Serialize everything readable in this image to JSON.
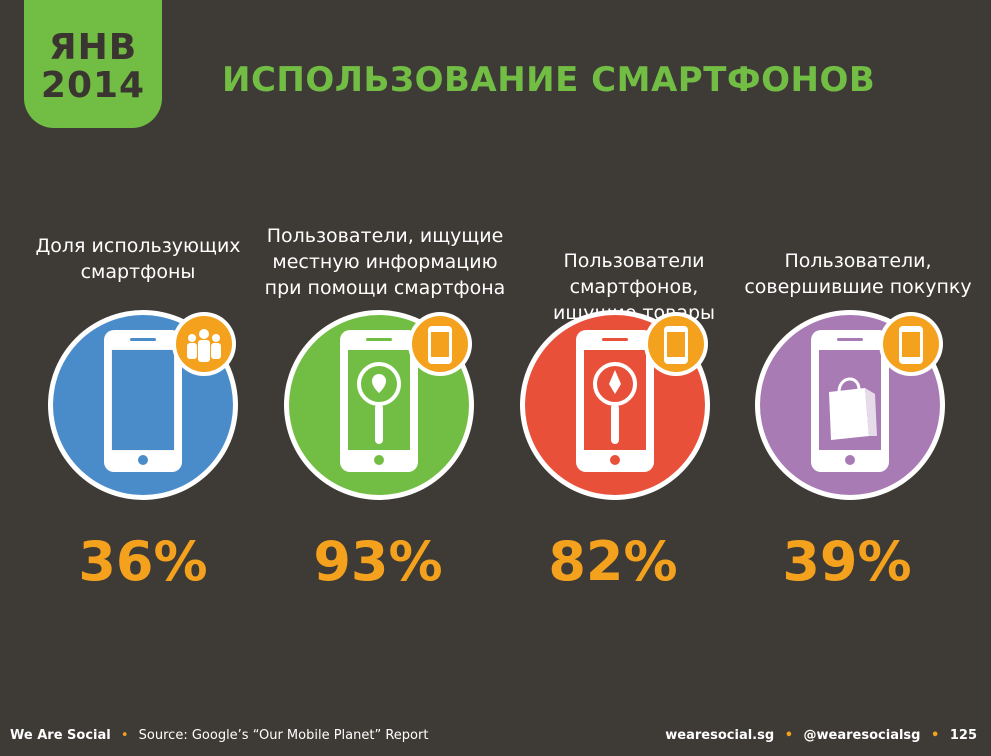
{
  "badge": {
    "month": "ЯНВ",
    "year": "2014"
  },
  "title": "ИСПОЛЬЗОВАНИЕ СМАРТФОНОВ",
  "colors": {
    "background": "#3e3a35",
    "accent_green": "#72be44",
    "value_orange": "#f4a11d",
    "badge_orange": "#f4a11d"
  },
  "chart_data": {
    "type": "table",
    "title": "",
    "categories": [
      "Доля использующих смартфоны",
      "Пользователи, ищущие местную информацию при помощи смартфона",
      "Пользователи смартфонов, ищущие товары",
      "Пользователи, совершившие покупку"
    ],
    "values": [
      36,
      93,
      82,
      39
    ],
    "unit": "%",
    "items": [
      {
        "label_lines": [
          "Доля использующих",
          "смартфоны"
        ],
        "value": "36%",
        "circle_color": "#4a8cc9",
        "icon": "people-icon",
        "inner_icon": ""
      },
      {
        "label_lines": [
          "Пользователи, ищущие",
          "местную информацию",
          "при помощи смартфона"
        ],
        "value": "93%",
        "circle_color": "#72be44",
        "icon": "smartphone-icon",
        "inner_icon": "map-pin-icon"
      },
      {
        "label_lines": [
          "Пользователи смартфонов,",
          "ищущие товары"
        ],
        "value": "82%",
        "circle_color": "#e8503a",
        "icon": "smartphone-icon",
        "inner_icon": "search-pen-icon"
      },
      {
        "label_lines": [
          "Пользователи,",
          "совершившие покупку"
        ],
        "value": "39%",
        "circle_color": "#a87bb5",
        "icon": "smartphone-icon",
        "inner_icon": "shopping-bag-icon"
      }
    ]
  },
  "footer": {
    "brand": "We Are Social",
    "source": "Source: Google’s “Our Mobile Planet” Report",
    "site": "wearesocial.sg",
    "handle": "@wearesocialsg",
    "page": "125"
  }
}
